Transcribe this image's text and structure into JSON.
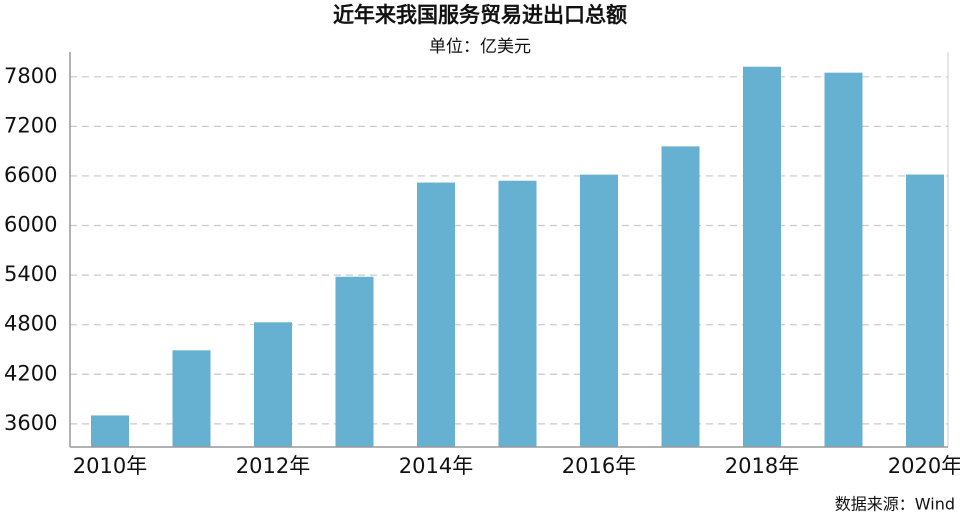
{
  "chart_data": {
    "type": "bar",
    "title": "近年来我国服务贸易进出口总额",
    "subtitle": "单位：亿美元",
    "source": "数据来源：Wind",
    "categories": [
      "2010年",
      null,
      "2012年",
      null,
      "2014年",
      null,
      "2016年",
      null,
      "2018年",
      null,
      "2020年"
    ],
    "values": [
      3702,
      4490,
      4829,
      5380,
      6520,
      6542,
      6616,
      6958,
      7922,
      7850,
      6617
    ],
    "color": "#66b0d2",
    "ylim": [
      3320,
      8100
    ],
    "yticks": [
      3600,
      4200,
      4800,
      5400,
      6000,
      6600,
      7200,
      7800
    ],
    "grid": true
  }
}
